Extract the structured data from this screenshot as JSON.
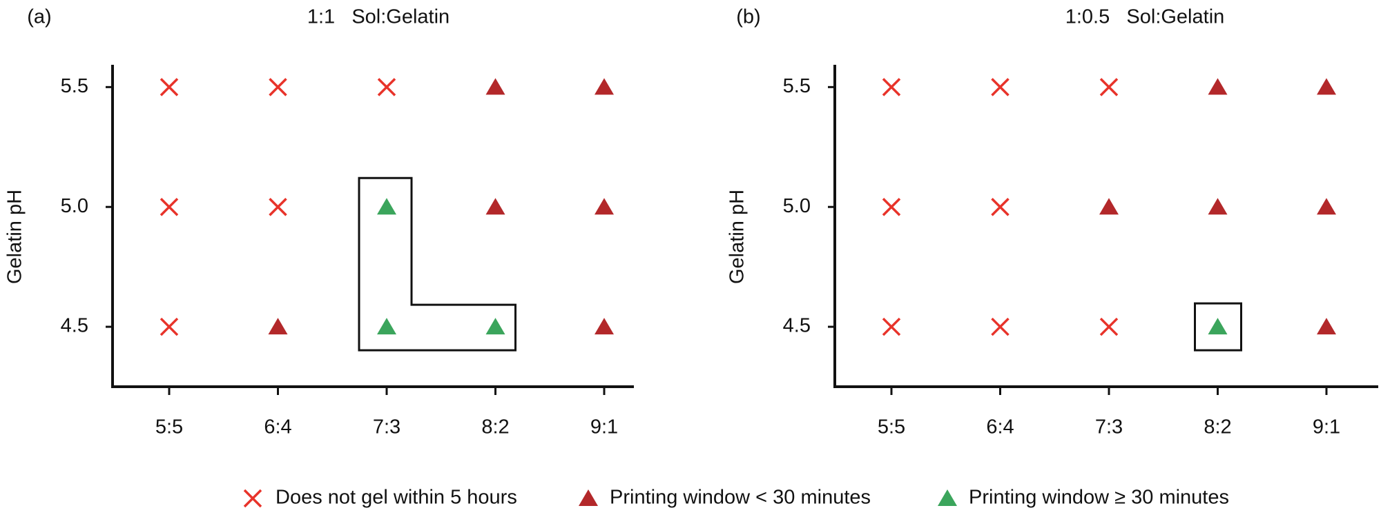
{
  "chart_data": [
    {
      "type": "scatter",
      "panel_label": "(a)",
      "title": "1:1   Sol:Gelatin",
      "y_label": "Gelatin pH",
      "categories": [
        "5:5",
        "6:4",
        "7:3",
        "8:2",
        "9:1"
      ],
      "ylim": [
        4.25,
        5.57
      ],
      "yticks": [
        4.5,
        {
          "value": 5,
          "label": "5.0"
        },
        5.5
      ],
      "series": [
        {
          "name": "Does not gel within 5 hours",
          "color": "#e8332a",
          "marker": "x",
          "points": [
            {
              "x": "5:5",
              "y": 5.5
            },
            {
              "x": "6:4",
              "y": 5.5
            },
            {
              "x": "7:3",
              "y": 5.5
            },
            {
              "x": "5:5",
              "y": 5
            },
            {
              "x": "6:4",
              "y": 5
            },
            {
              "x": "5:5",
              "y": 4.5
            }
          ]
        },
        {
          "name": "Printing window < 30 minutes",
          "color": "#b3282a",
          "marker": "triangle",
          "points": [
            {
              "x": "8:2",
              "y": 5.5
            },
            {
              "x": "9:1",
              "y": 5.5
            },
            {
              "x": "8:2",
              "y": 5
            },
            {
              "x": "9:1",
              "y": 5
            },
            {
              "x": "6:4",
              "y": 4.5
            },
            {
              "x": "9:1",
              "y": 4.5
            }
          ]
        },
        {
          "name": "Printing window ≥ 30 minutes",
          "color": "#3ba55c",
          "marker": "triangle",
          "points": [
            {
              "x": "7:3",
              "y": 5
            },
            {
              "x": "7:3",
              "y": 4.5
            },
            {
              "x": "8:2",
              "y": 4.5
            }
          ]
        }
      ]
    },
    {
      "type": "scatter",
      "panel_label": "(b)",
      "title": "1:0.5   Sol:Gelatin",
      "y_label": "Gelatin pH",
      "categories": [
        "5:5",
        "6:4",
        "7:3",
        "8:2",
        "9:1"
      ],
      "ylim": [
        4.25,
        5.57
      ],
      "yticks": [
        4.5,
        {
          "value": 5,
          "label": "5.0"
        },
        5.5
      ],
      "series": [
        {
          "name": "Does not gel within 5 hours",
          "color": "#e8332a",
          "marker": "x",
          "points": [
            {
              "x": "5:5",
              "y": 5.5
            },
            {
              "x": "6:4",
              "y": 5.5
            },
            {
              "x": "7:3",
              "y": 5.5
            },
            {
              "x": "5:5",
              "y": 5
            },
            {
              "x": "6:4",
              "y": 5
            },
            {
              "x": "5:5",
              "y": 4.5
            },
            {
              "x": "6:4",
              "y": 4.5
            },
            {
              "x": "7:3",
              "y": 4.5
            }
          ]
        },
        {
          "name": "Printing window < 30 minutes",
          "color": "#b3282a",
          "marker": "triangle",
          "points": [
            {
              "x": "8:2",
              "y": 5.5
            },
            {
              "x": "9:1",
              "y": 5.5
            },
            {
              "x": "7:3",
              "y": 5
            },
            {
              "x": "8:2",
              "y": 5
            },
            {
              "x": "9:1",
              "y": 5
            },
            {
              "x": "9:1",
              "y": 4.5
            }
          ]
        },
        {
          "name": "Printing window ≥ 30 minutes",
          "color": "#3ba55c",
          "marker": "triangle",
          "points": [
            {
              "x": "8:2",
              "y": 4.5
            }
          ]
        }
      ]
    }
  ]
}
